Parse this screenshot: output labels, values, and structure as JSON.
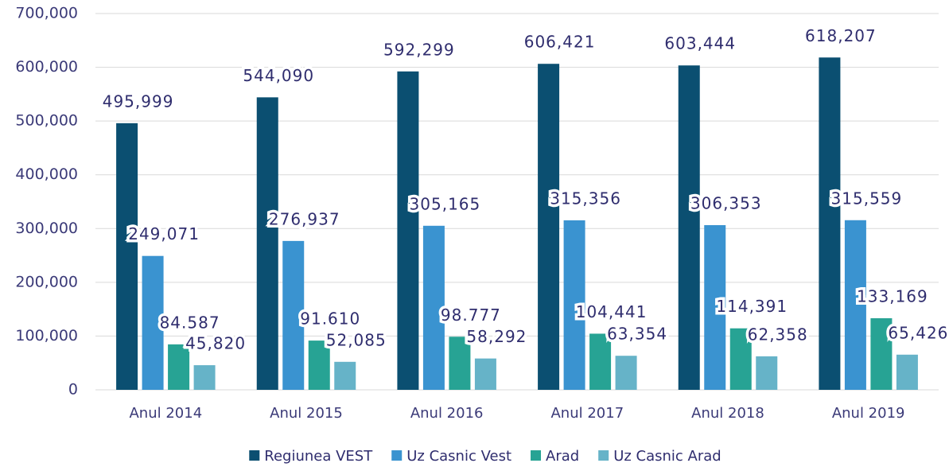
{
  "chart_data": {
    "type": "bar",
    "categories": [
      "Anul 2014",
      "Anul 2015",
      "Anul 2016",
      "Anul 2017",
      "Anul 2018",
      "Anul 2019"
    ],
    "series": [
      {
        "name": "Regiunea VEST",
        "color": "#0b4f71",
        "values": [
          495999,
          544090,
          592299,
          606421,
          603444,
          618207
        ],
        "value_labels": [
          "495,999",
          "544,090",
          "592,299",
          "606,421",
          "603,444",
          "618,207"
        ]
      },
      {
        "name": "Uz Casnic Vest",
        "color": "#3a93d0",
        "values": [
          249071,
          276937,
          305165,
          315356,
          306353,
          315559
        ],
        "value_labels": [
          "249,071",
          "276,937",
          "305,165",
          "315,356",
          "306,353",
          "315,559"
        ]
      },
      {
        "name": "Arad",
        "color": "#27a394",
        "values": [
          84587,
          91610,
          98777,
          104441,
          114391,
          133169
        ],
        "value_labels": [
          "84.587",
          "91.610",
          "98.777",
          "104,441",
          "114,391",
          "133,169"
        ]
      },
      {
        "name": "Uz Casnic Arad",
        "color": "#66b3c8",
        "values": [
          45820,
          52085,
          58292,
          63354,
          62358,
          65426
        ],
        "value_labels": [
          "45,820",
          "52,085",
          "58,292",
          "63,354",
          "62,358",
          "65,426"
        ]
      }
    ],
    "ylim": [
      0,
      700000
    ],
    "yticks": [
      0,
      {
        "value": 100000,
        "label": "100,000"
      },
      {
        "value": 200000,
        "label": "200,000"
      },
      {
        "value": 300000,
        "label": "300,000"
      },
      {
        "value": 400000,
        "label": "400,000"
      },
      {
        "value": 500000,
        "label": "500,000"
      },
      {
        "value": 600000,
        "label": "600,000"
      },
      {
        "value": 700000,
        "label": "700,000"
      }
    ],
    "grid": true,
    "legend": "bottom"
  }
}
